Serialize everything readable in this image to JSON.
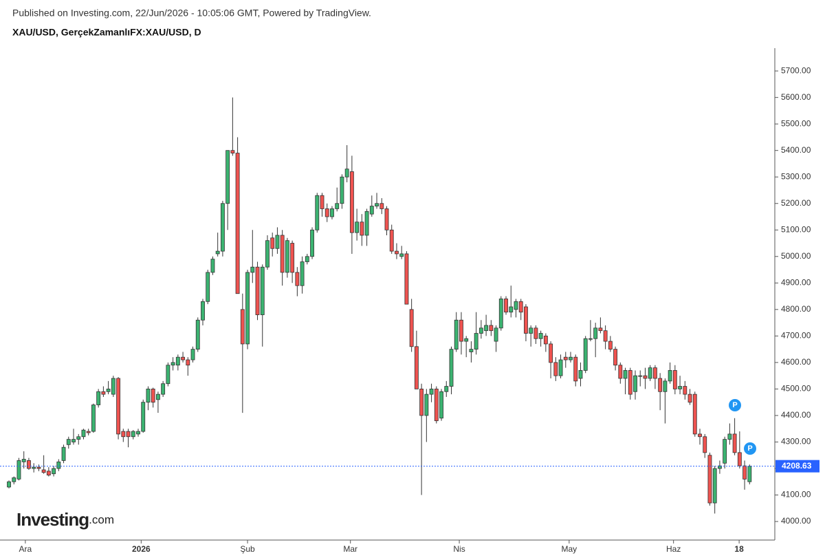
{
  "header": {
    "published": "Published on Investing.com, 22/Jun/2026 - 10:05:06 GMT, Powered by TradingView.",
    "symbol": "XAU/USD, GerçekZamanlıFX:XAU/USD, D"
  },
  "logo": {
    "name": "Investing",
    "suffix": ".com"
  },
  "markers": [
    "P",
    "P"
  ],
  "chart_data": {
    "type": "candlestick",
    "up_color": "#3cb371",
    "down_color": "#ef5350",
    "ohlc": [
      [
        4130,
        4155,
        4125,
        4150
      ],
      [
        4150,
        4170,
        4140,
        4165
      ],
      [
        4160,
        4240,
        4155,
        4230
      ],
      [
        4225,
        4265,
        4200,
        4235
      ],
      [
        4230,
        4240,
        4195,
        4200
      ],
      [
        4200,
        4220,
        4185,
        4205
      ],
      [
        4205,
        4215,
        4190,
        4200
      ],
      [
        4195,
        4250,
        4180,
        4185
      ],
      [
        4190,
        4205,
        4170,
        4175
      ],
      [
        4180,
        4210,
        4170,
        4200
      ],
      [
        4200,
        4235,
        4190,
        4225
      ],
      [
        4230,
        4290,
        4220,
        4280
      ],
      [
        4290,
        4320,
        4275,
        4310
      ],
      [
        4300,
        4350,
        4290,
        4310
      ],
      [
        4310,
        4330,
        4290,
        4320
      ],
      [
        4320,
        4350,
        4310,
        4345
      ],
      [
        4340,
        4350,
        4325,
        4335
      ],
      [
        4340,
        4445,
        4335,
        4440
      ],
      [
        4440,
        4500,
        4430,
        4490
      ],
      [
        4490,
        4510,
        4470,
        4480
      ],
      [
        4490,
        4530,
        4480,
        4500
      ],
      [
        4480,
        4550,
        4470,
        4540
      ],
      [
        4540,
        4545,
        4310,
        4330
      ],
      [
        4340,
        4350,
        4300,
        4320
      ],
      [
        4340,
        4350,
        4280,
        4320
      ],
      [
        4320,
        4345,
        4310,
        4340
      ],
      [
        4330,
        4350,
        4320,
        4340
      ],
      [
        4340,
        4460,
        4335,
        4450
      ],
      [
        4450,
        4510,
        4420,
        4500
      ],
      [
        4500,
        4505,
        4430,
        4450
      ],
      [
        4460,
        4490,
        4410,
        4480
      ],
      [
        4480,
        4530,
        4470,
        4520
      ],
      [
        4520,
        4600,
        4510,
        4590
      ],
      [
        4590,
        4620,
        4570,
        4600
      ],
      [
        4590,
        4630,
        4570,
        4620
      ],
      [
        4620,
        4640,
        4600,
        4610
      ],
      [
        4610,
        4620,
        4550,
        4590
      ],
      [
        4610,
        4660,
        4600,
        4650
      ],
      [
        4650,
        4770,
        4640,
        4760
      ],
      [
        4760,
        4840,
        4740,
        4830
      ],
      [
        4830,
        4950,
        4820,
        4940
      ],
      [
        4940,
        5000,
        4930,
        4990
      ],
      [
        5010,
        5090,
        5000,
        5020
      ],
      [
        5020,
        5210,
        5000,
        5200
      ],
      [
        5200,
        5400,
        5100,
        5400
      ],
      [
        5400,
        5600,
        5380,
        5390
      ],
      [
        5390,
        5450,
        4860,
        4860
      ],
      [
        4800,
        4860,
        4410,
        4670
      ],
      [
        4670,
        4950,
        4650,
        4940
      ],
      [
        4940,
        5100,
        4900,
        4960
      ],
      [
        4960,
        4980,
        4760,
        4780
      ],
      [
        4780,
        4970,
        4660,
        4960
      ],
      [
        4960,
        5080,
        4950,
        5060
      ],
      [
        5070,
        5090,
        5000,
        5030
      ],
      [
        5030,
        5110,
        5010,
        5080
      ],
      [
        5080,
        5100,
        4890,
        4940
      ],
      [
        4940,
        5070,
        4920,
        5060
      ],
      [
        5050,
        5060,
        4900,
        4940
      ],
      [
        4940,
        4960,
        4850,
        4890
      ],
      [
        4890,
        5000,
        4860,
        4980
      ],
      [
        4980,
        5010,
        4970,
        5000
      ],
      [
        5000,
        5110,
        4990,
        5100
      ],
      [
        5100,
        5240,
        5090,
        5230
      ],
      [
        5230,
        5240,
        5150,
        5180
      ],
      [
        5180,
        5200,
        5130,
        5150
      ],
      [
        5150,
        5190,
        5140,
        5180
      ],
      [
        5180,
        5260,
        5170,
        5200
      ],
      [
        5200,
        5310,
        5180,
        5300
      ],
      [
        5300,
        5420,
        5280,
        5330
      ],
      [
        5320,
        5380,
        5010,
        5090
      ],
      [
        5090,
        5180,
        5060,
        5130
      ],
      [
        5130,
        5160,
        5040,
        5080
      ],
      [
        5080,
        5180,
        5040,
        5170
      ],
      [
        5160,
        5230,
        5150,
        5190
      ],
      [
        5190,
        5240,
        5180,
        5200
      ],
      [
        5200,
        5220,
        5160,
        5180
      ],
      [
        5180,
        5190,
        5080,
        5100
      ],
      [
        5100,
        5120,
        5010,
        5020
      ],
      [
        5020,
        5050,
        4990,
        5010
      ],
      [
        5000,
        5040,
        4990,
        5010
      ],
      [
        5010,
        5020,
        4820,
        4820
      ],
      [
        4800,
        4840,
        4640,
        4660
      ],
      [
        4660,
        4720,
        4500,
        4500
      ],
      [
        4500,
        4520,
        4100,
        4400
      ],
      [
        4400,
        4500,
        4300,
        4480
      ],
      [
        4480,
        4520,
        4450,
        4500
      ],
      [
        4500,
        4510,
        4370,
        4380
      ],
      [
        4390,
        4500,
        4380,
        4490
      ],
      [
        4490,
        4530,
        4470,
        4510
      ],
      [
        4510,
        4660,
        4480,
        4650
      ],
      [
        4650,
        4790,
        4640,
        4760
      ],
      [
        4760,
        4790,
        4630,
        4680
      ],
      [
        4680,
        4700,
        4620,
        4690
      ],
      [
        4640,
        4680,
        4600,
        4650
      ],
      [
        4650,
        4790,
        4630,
        4710
      ],
      [
        4710,
        4760,
        4690,
        4730
      ],
      [
        4720,
        4780,
        4700,
        4740
      ],
      [
        4740,
        4760,
        4700,
        4720
      ],
      [
        4680,
        4740,
        4640,
        4730
      ],
      [
        4730,
        4850,
        4720,
        4840
      ],
      [
        4840,
        4850,
        4780,
        4790
      ],
      [
        4790,
        4890,
        4770,
        4810
      ],
      [
        4800,
        4840,
        4770,
        4830
      ],
      [
        4830,
        4840,
        4760,
        4790
      ],
      [
        4810,
        4820,
        4680,
        4710
      ],
      [
        4710,
        4740,
        4660,
        4730
      ],
      [
        4730,
        4740,
        4670,
        4690
      ],
      [
        4690,
        4720,
        4660,
        4710
      ],
      [
        4700,
        4710,
        4640,
        4670
      ],
      [
        4670,
        4680,
        4540,
        4600
      ],
      [
        4600,
        4620,
        4530,
        4550
      ],
      [
        4550,
        4630,
        4540,
        4610
      ],
      [
        4620,
        4640,
        4580,
        4610
      ],
      [
        4610,
        4640,
        4600,
        4620
      ],
      [
        4620,
        4630,
        4510,
        4530
      ],
      [
        4540,
        4600,
        4510,
        4570
      ],
      [
        4570,
        4700,
        4560,
        4690
      ],
      [
        4690,
        4760,
        4680,
        4690
      ],
      [
        4690,
        4750,
        4620,
        4730
      ],
      [
        4730,
        4770,
        4710,
        4720
      ],
      [
        4720,
        4740,
        4650,
        4680
      ],
      [
        4680,
        4700,
        4640,
        4650
      ],
      [
        4650,
        4660,
        4570,
        4590
      ],
      [
        4590,
        4600,
        4520,
        4540
      ],
      [
        4540,
        4580,
        4480,
        4570
      ],
      [
        4570,
        4580,
        4460,
        4480
      ],
      [
        4490,
        4570,
        4460,
        4550
      ],
      [
        4550,
        4570,
        4510,
        4550
      ],
      [
        4550,
        4580,
        4500,
        4540
      ],
      [
        4540,
        4590,
        4530,
        4580
      ],
      [
        4580,
        4590,
        4500,
        4540
      ],
      [
        4540,
        4560,
        4420,
        4490
      ],
      [
        4490,
        4540,
        4370,
        4530
      ],
      [
        4530,
        4600,
        4520,
        4570
      ],
      [
        4570,
        4590,
        4480,
        4500
      ],
      [
        4500,
        4550,
        4480,
        4510
      ],
      [
        4510,
        4530,
        4460,
        4480
      ],
      [
        4480,
        4500,
        4440,
        4450
      ],
      [
        4480,
        4490,
        4320,
        4330
      ],
      [
        4330,
        4350,
        4290,
        4320
      ],
      [
        4320,
        4330,
        4240,
        4260
      ],
      [
        4250,
        4260,
        4060,
        4070
      ],
      [
        4070,
        4210,
        4030,
        4200
      ],
      [
        4200,
        4230,
        4180,
        4210
      ],
      [
        4220,
        4320,
        4200,
        4310
      ],
      [
        4310,
        4370,
        4290,
        4330
      ],
      [
        4330,
        4390,
        4250,
        4260
      ],
      [
        4260,
        4340,
        4200,
        4210
      ],
      [
        4210,
        4230,
        4120,
        4160
      ],
      [
        4150,
        4215,
        4140,
        4208.63
      ]
    ],
    "xlim": [
      -1.8,
      153.8
    ],
    "xticks": [
      {
        "value": 3.3,
        "label": "Ara"
      },
      {
        "value": 26.6,
        "label": "2026"
      },
      {
        "value": 48,
        "label": "Şub"
      },
      {
        "value": 68.7,
        "label": "Mar"
      },
      {
        "value": 90.6,
        "label": "Nis"
      },
      {
        "value": 112.7,
        "label": "May"
      },
      {
        "value": 133.7,
        "label": "Haz"
      },
      {
        "value": 146.9,
        "label": "18"
      }
    ],
    "ylim": [
      3930,
      5786
    ],
    "yticks": [
      {
        "value": 4000,
        "label": "4000.00"
      },
      {
        "value": 4100,
        "label": "4100.00"
      },
      {
        "value": 4200,
        "label": "4200.00"
      },
      {
        "value": 4300,
        "label": "4300.00"
      },
      {
        "value": 4400,
        "label": "4400.00"
      },
      {
        "value": 4500,
        "label": "4500.00"
      },
      {
        "value": 4600,
        "label": "4600.00"
      },
      {
        "value": 4700,
        "label": "4700.00"
      },
      {
        "value": 4800,
        "label": "4800.00"
      },
      {
        "value": 4900,
        "label": "4900.00"
      },
      {
        "value": 5000,
        "label": "5000.00"
      },
      {
        "value": 5100,
        "label": "5100.00"
      },
      {
        "value": 5200,
        "label": "5200.00"
      },
      {
        "value": 5300,
        "label": "5300.00"
      },
      {
        "value": 5400,
        "label": "5400.00"
      },
      {
        "value": 5500,
        "label": "5500.00"
      },
      {
        "value": 5600,
        "label": "5600.00"
      },
      {
        "value": 5700,
        "label": "5700.00"
      }
    ],
    "last_price": {
      "value": 4208.63,
      "label": "4208.63"
    }
  }
}
